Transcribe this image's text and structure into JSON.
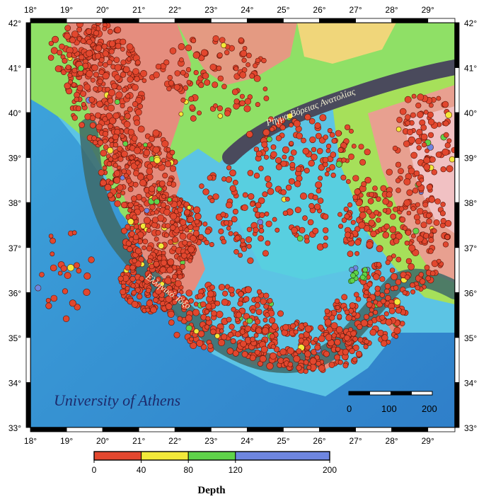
{
  "map": {
    "lon_ticks": [
      18,
      19,
      20,
      21,
      22,
      23,
      24,
      25,
      26,
      27,
      28,
      29
    ],
    "lat_ticks": [
      42,
      41,
      40,
      39,
      38,
      37,
      36,
      35,
      34,
      33
    ],
    "degree_symbol": "°",
    "credit": "University of Athens",
    "labels": {
      "north_anatolian_rift": "Ρήγμα Βόρειας Ανατολίας",
      "hellenic_arc": "Ελληνικό Τόξο"
    },
    "scale_bar": {
      "labels": [
        "0",
        "100",
        "200"
      ]
    },
    "colors": {
      "deep_sea": "#2f86cf",
      "shelf": "#56c3e6",
      "lowland": "#9bea5a",
      "hills": "#f0dd7a",
      "mountains": "#e58d7e",
      "peaks": "#f3c9d0",
      "rift_band": "#4a4a5c",
      "arc_band": "#3e6a68",
      "quake_shallow": "#e2472e",
      "quake_mid": "#f2e93a",
      "quake_deep": "#5fd34a",
      "quake_vdeep": "#6e86e0"
    }
  },
  "legend": {
    "title": "Depth",
    "ticks": [
      "0",
      "40",
      "80",
      "120",
      "200"
    ],
    "segments": [
      {
        "from": 0,
        "to": 40,
        "color": "#e2472e"
      },
      {
        "from": 40,
        "to": 80,
        "color": "#f2e93a"
      },
      {
        "from": 80,
        "to": 120,
        "color": "#5fd34a"
      },
      {
        "from": 120,
        "to": 200,
        "color": "#6e86e0"
      }
    ]
  }
}
